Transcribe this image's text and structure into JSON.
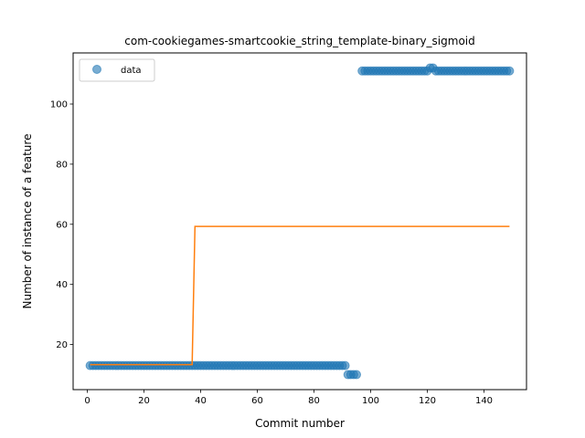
{
  "chart_data": {
    "type": "scatter",
    "title": "com-cookiegames-smartcookie_string_template-binary_sigmoid",
    "xlabel": "Commit number",
    "ylabel": "Number of instance of a feature",
    "xlim": [
      -5,
      155
    ],
    "ylim": [
      5,
      117
    ],
    "xticks": [
      0,
      20,
      40,
      60,
      80,
      100,
      120,
      140
    ],
    "yticks": [
      20,
      40,
      60,
      80,
      100
    ],
    "legend": {
      "position": "top-left",
      "entries": [
        "data"
      ]
    },
    "grid": false,
    "series": [
      {
        "name": "data",
        "kind": "scatter",
        "color": "#1f77b4",
        "segments": [
          {
            "x_start": 1,
            "x_end": 91,
            "y": 13
          },
          {
            "x_start": 92,
            "x_end": 95,
            "y": 10
          },
          {
            "x_start": 97,
            "x_end": 120,
            "y": 111
          },
          {
            "x_start": 121,
            "x_end": 122,
            "y": 112
          },
          {
            "x_start": 123,
            "x_end": 149,
            "y": 111
          }
        ]
      },
      {
        "kind": "line",
        "color": "#ff7f0e",
        "x": [
          1,
          37,
          38,
          149
        ],
        "y": [
          13.3,
          13.3,
          59.3,
          59.3
        ]
      }
    ]
  }
}
